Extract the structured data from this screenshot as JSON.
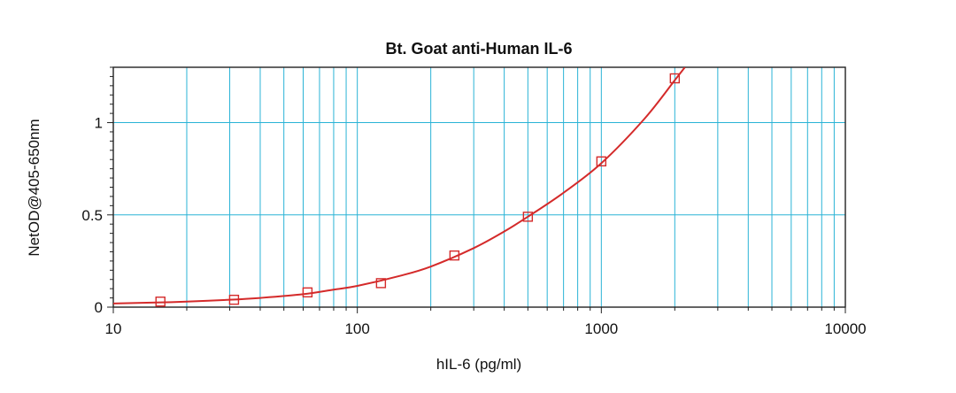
{
  "chart_data": {
    "type": "scatter",
    "title": "Bt. Goat anti-Human IL-6",
    "xlabel": "hIL-6 (pg/ml)",
    "ylabel": "NetOD@405-650nm",
    "x_scale": "log",
    "xlim": [
      10,
      10000
    ],
    "ylim": [
      0,
      1.3
    ],
    "x_ticks": [
      10,
      100,
      1000,
      10000
    ],
    "x_tick_labels": [
      "10",
      "100",
      "1000",
      "10000"
    ],
    "y_ticks": [
      0,
      0.5,
      1
    ],
    "y_tick_labels": [
      "0",
      "0.5",
      "1"
    ],
    "grid": true,
    "grid_color": "#2ab3d6",
    "series": [
      {
        "kind": "points",
        "marker": "square",
        "color": "#d42a2a",
        "x": [
          15.6,
          31.25,
          62.5,
          125,
          250,
          500,
          1000,
          2000
        ],
        "y": [
          0.03,
          0.04,
          0.08,
          0.13,
          0.28,
          0.49,
          0.79,
          1.24
        ]
      },
      {
        "kind": "curve",
        "color": "#d42a2a",
        "x": [
          10,
          15,
          20,
          30,
          40,
          60,
          80,
          100,
          150,
          200,
          300,
          400,
          500,
          700,
          1000,
          1500,
          2000,
          2200
        ],
        "y": [
          0.02,
          0.025,
          0.03,
          0.04,
          0.05,
          0.07,
          0.095,
          0.115,
          0.17,
          0.22,
          0.32,
          0.41,
          0.49,
          0.62,
          0.78,
          1.02,
          1.23,
          1.3
        ]
      }
    ]
  }
}
